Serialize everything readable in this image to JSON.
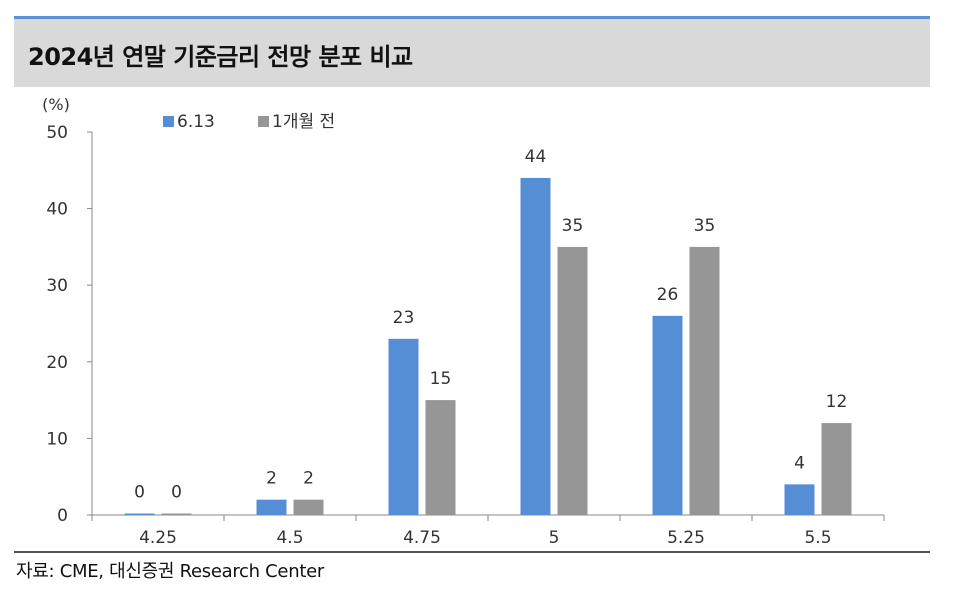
{
  "title": "2024년 연말 기준금리 전망 분포 비교",
  "source": "자료: CME, 대신증권 Research Center",
  "colors": {
    "series1": "#558ed5",
    "series2": "#969696",
    "axis": "#888888"
  },
  "chart_data": {
    "type": "bar",
    "ylabel": "(%)",
    "ylim": [
      0,
      50
    ],
    "yticks": [
      0,
      10,
      20,
      30,
      40,
      50
    ],
    "legend_position": "top-left",
    "categories": [
      "4.25",
      "4.5",
      "4.75",
      "5",
      "5.25",
      "5.5"
    ],
    "series": [
      {
        "name": "6.13",
        "values": [
          0,
          2,
          23,
          44,
          26,
          4
        ]
      },
      {
        "name": "1개월 전",
        "values": [
          0,
          2,
          15,
          35,
          35,
          12
        ]
      }
    ]
  }
}
